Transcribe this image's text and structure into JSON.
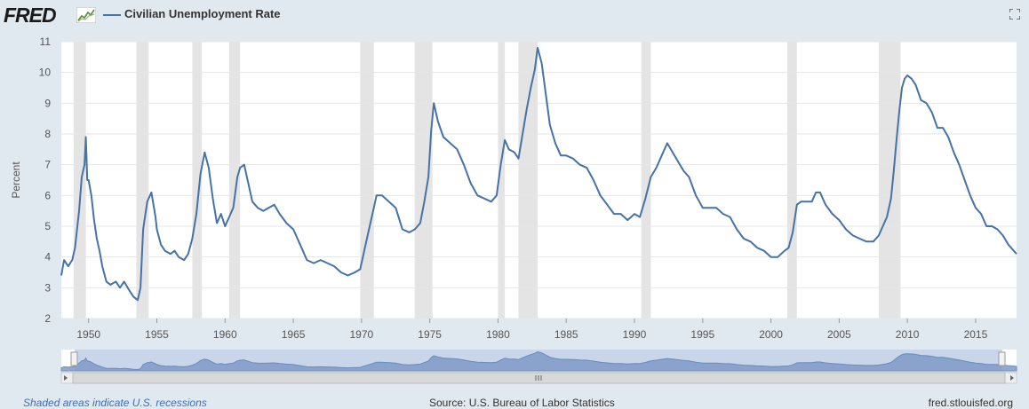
{
  "header": {
    "logo_text": "FRED",
    "legend_label": "Civilian Unemployment Rate"
  },
  "footer": {
    "recession_note": "Shaded areas indicate U.S. recessions",
    "source": "Source: U.S. Bureau of Labor Statistics",
    "site": "fred.stlouisfed.org"
  },
  "colors": {
    "series": "#4572a7",
    "recession": "#e4e4e4",
    "background": "#e1e9f0",
    "navigator_fill": "#7e9bc8"
  },
  "chart_data": {
    "type": "line",
    "title": "",
    "xlabel": "",
    "ylabel": "Percent",
    "xlim": [
      1948.0,
      2018.0
    ],
    "ylim": [
      2,
      11
    ],
    "yticks": [
      2,
      3,
      4,
      5,
      6,
      7,
      8,
      9,
      10,
      11
    ],
    "xticks": [
      1950,
      1955,
      1960,
      1965,
      1970,
      1975,
      1980,
      1985,
      1990,
      1995,
      2000,
      2005,
      2010,
      2015
    ],
    "grid": true,
    "legend_position": "top-left",
    "recessions": [
      [
        1948.9,
        1949.8
      ],
      [
        1953.5,
        1954.4
      ],
      [
        1957.6,
        1958.3
      ],
      [
        1960.3,
        1961.1
      ],
      [
        1969.9,
        1970.9
      ],
      [
        1973.9,
        1975.2
      ],
      [
        1980.0,
        1980.5
      ],
      [
        1981.5,
        1982.9
      ],
      [
        1990.5,
        1991.2
      ],
      [
        2001.2,
        2001.9
      ],
      [
        2007.9,
        2009.5
      ]
    ],
    "series": [
      {
        "name": "Civilian Unemployment Rate",
        "x": [
          1948.0,
          1948.2,
          1948.5,
          1948.8,
          1949.0,
          1949.3,
          1949.5,
          1949.7,
          1949.8,
          1949.9,
          1950.0,
          1950.2,
          1950.4,
          1950.6,
          1950.8,
          1951.0,
          1951.3,
          1951.6,
          1952.0,
          1952.3,
          1952.6,
          1953.0,
          1953.3,
          1953.6,
          1953.8,
          1954.0,
          1954.3,
          1954.6,
          1954.9,
          1955.0,
          1955.3,
          1955.6,
          1956.0,
          1956.3,
          1956.6,
          1957.0,
          1957.3,
          1957.6,
          1957.9,
          1958.2,
          1958.5,
          1958.8,
          1959.1,
          1959.4,
          1959.7,
          1960.0,
          1960.3,
          1960.6,
          1960.9,
          1961.1,
          1961.4,
          1961.7,
          1962.0,
          1962.4,
          1962.8,
          1963.2,
          1963.6,
          1964.0,
          1964.5,
          1965.0,
          1965.5,
          1966.0,
          1966.5,
          1967.0,
          1967.5,
          1968.0,
          1968.5,
          1969.0,
          1969.5,
          1969.9,
          1970.2,
          1970.5,
          1970.9,
          1971.1,
          1971.5,
          1972.0,
          1972.5,
          1973.0,
          1973.5,
          1973.9,
          1974.3,
          1974.6,
          1974.9,
          1975.1,
          1975.3,
          1975.6,
          1976.0,
          1976.5,
          1977.0,
          1977.5,
          1978.0,
          1978.5,
          1979.0,
          1979.5,
          1979.9,
          1980.2,
          1980.5,
          1980.8,
          1981.2,
          1981.5,
          1981.8,
          1982.1,
          1982.4,
          1982.7,
          1982.9,
          1983.2,
          1983.5,
          1983.8,
          1984.2,
          1984.6,
          1985.0,
          1985.5,
          1986.0,
          1986.5,
          1987.0,
          1987.5,
          1988.0,
          1988.5,
          1989.0,
          1989.5,
          1990.0,
          1990.4,
          1990.8,
          1991.2,
          1991.6,
          1992.0,
          1992.4,
          1992.8,
          1993.2,
          1993.6,
          1994.0,
          1994.5,
          1995.0,
          1995.5,
          1996.0,
          1996.5,
          1997.0,
          1997.5,
          1998.0,
          1998.5,
          1999.0,
          1999.5,
          2000.0,
          2000.5,
          2001.0,
          2001.3,
          2001.6,
          2001.9,
          2002.2,
          2002.6,
          2003.0,
          2003.3,
          2003.6,
          2004.0,
          2004.5,
          2005.0,
          2005.5,
          2006.0,
          2006.5,
          2007.0,
          2007.5,
          2007.9,
          2008.2,
          2008.5,
          2008.8,
          2009.0,
          2009.2,
          2009.4,
          2009.6,
          2009.8,
          2010.0,
          2010.3,
          2010.6,
          2011.0,
          2011.4,
          2011.8,
          2012.2,
          2012.6,
          2013.0,
          2013.4,
          2013.8,
          2014.2,
          2014.6,
          2015.0,
          2015.4,
          2015.8,
          2016.2,
          2016.6,
          2017.0,
          2017.4,
          2017.8,
          2018.0
        ],
        "values": [
          3.4,
          3.9,
          3.7,
          3.9,
          4.3,
          5.5,
          6.6,
          7.0,
          7.9,
          6.5,
          6.5,
          6.0,
          5.2,
          4.6,
          4.2,
          3.7,
          3.2,
          3.1,
          3.2,
          3.0,
          3.2,
          2.9,
          2.7,
          2.6,
          3.0,
          4.9,
          5.8,
          6.1,
          5.3,
          4.9,
          4.4,
          4.2,
          4.1,
          4.2,
          4.0,
          3.9,
          4.1,
          4.6,
          5.4,
          6.7,
          7.4,
          6.9,
          5.9,
          5.1,
          5.4,
          5.0,
          5.3,
          5.6,
          6.6,
          6.9,
          7.0,
          6.4,
          5.8,
          5.6,
          5.5,
          5.6,
          5.7,
          5.4,
          5.1,
          4.9,
          4.4,
          3.9,
          3.8,
          3.9,
          3.8,
          3.7,
          3.5,
          3.4,
          3.5,
          3.6,
          4.2,
          4.8,
          5.6,
          6.0,
          6.0,
          5.8,
          5.6,
          4.9,
          4.8,
          4.9,
          5.1,
          5.8,
          6.6,
          8.1,
          9.0,
          8.4,
          7.9,
          7.7,
          7.5,
          7.0,
          6.4,
          6.0,
          5.9,
          5.8,
          6.0,
          7.0,
          7.8,
          7.5,
          7.4,
          7.2,
          8.0,
          8.8,
          9.5,
          10.1,
          10.8,
          10.3,
          9.3,
          8.3,
          7.7,
          7.3,
          7.3,
          7.2,
          7.0,
          6.9,
          6.5,
          6.0,
          5.7,
          5.4,
          5.4,
          5.2,
          5.4,
          5.3,
          5.9,
          6.6,
          6.9,
          7.3,
          7.7,
          7.4,
          7.1,
          6.8,
          6.6,
          6.0,
          5.6,
          5.6,
          5.6,
          5.4,
          5.3,
          4.9,
          4.6,
          4.5,
          4.3,
          4.2,
          4.0,
          4.0,
          4.2,
          4.3,
          4.8,
          5.7,
          5.8,
          5.8,
          5.8,
          6.1,
          6.1,
          5.7,
          5.4,
          5.2,
          4.9,
          4.7,
          4.6,
          4.5,
          4.5,
          4.7,
          5.0,
          5.3,
          5.9,
          6.8,
          7.8,
          8.7,
          9.5,
          9.8,
          9.9,
          9.8,
          9.6,
          9.1,
          9.0,
          8.7,
          8.2,
          8.2,
          7.9,
          7.4,
          7.0,
          6.5,
          6.0,
          5.6,
          5.4,
          5.0,
          5.0,
          4.9,
          4.7,
          4.4,
          4.2,
          4.1
        ]
      }
    ]
  }
}
